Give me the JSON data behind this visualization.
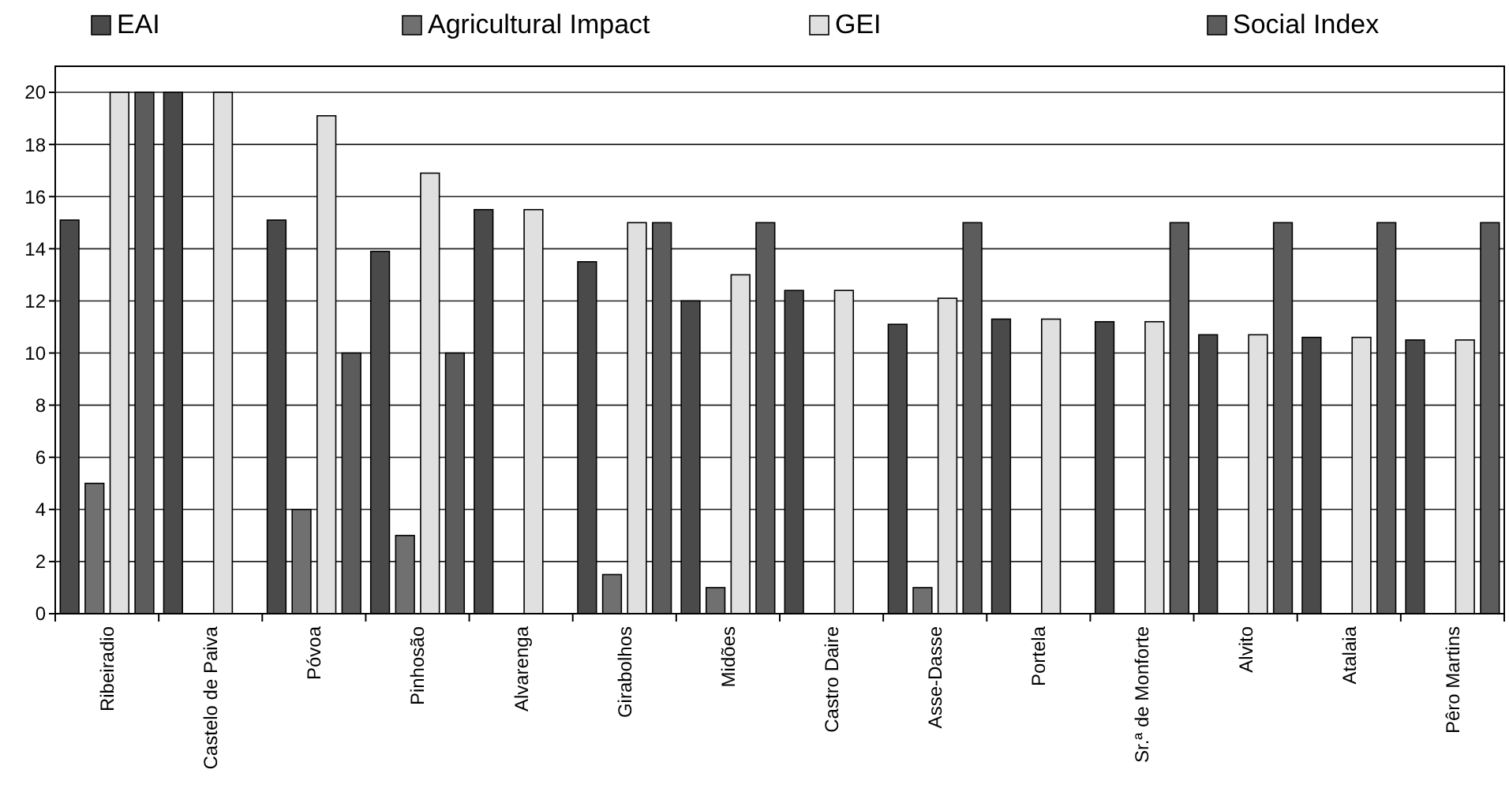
{
  "chart_data": {
    "type": "bar",
    "categories": [
      "Ribeiradio",
      "Castelo de Paiva",
      "Póvoa",
      "Pinhosão",
      "Alvarenga",
      "Girabolhos",
      "Midões",
      "Castro Daire",
      "Asse-Dasse",
      "Portela",
      "Sr.ª de Monforte",
      "Alvito",
      "Atalaia",
      "Pêro Martins"
    ],
    "series": [
      {
        "name": "EAI",
        "color": "#4a4a4a",
        "values": [
          15.1,
          20,
          15.1,
          13.9,
          15.5,
          13.5,
          12,
          12.4,
          11.1,
          11.3,
          11.2,
          10.7,
          10.6,
          10.5
        ]
      },
      {
        "name": "Agricultural Impact",
        "color": "#707070",
        "values": [
          5,
          null,
          4,
          3,
          null,
          1.5,
          1,
          null,
          1,
          null,
          null,
          null,
          null,
          null
        ]
      },
      {
        "name": "GEI",
        "color": "#e0e0e0",
        "values": [
          20,
          20,
          19.1,
          16.9,
          15.5,
          15,
          13,
          12.4,
          12.1,
          11.3,
          11.2,
          10.7,
          10.6,
          10.5
        ]
      },
      {
        "name": "Social Index",
        "color": "#5c5c5c",
        "values": [
          20,
          null,
          10,
          10,
          null,
          15,
          15,
          null,
          15,
          null,
          15,
          15,
          15,
          15
        ]
      }
    ],
    "ylim": [
      0,
      21
    ],
    "yticks": [
      0,
      2,
      4,
      6,
      8,
      10,
      12,
      14,
      16,
      18,
      20
    ],
    "grid": "y",
    "legend": "top"
  }
}
